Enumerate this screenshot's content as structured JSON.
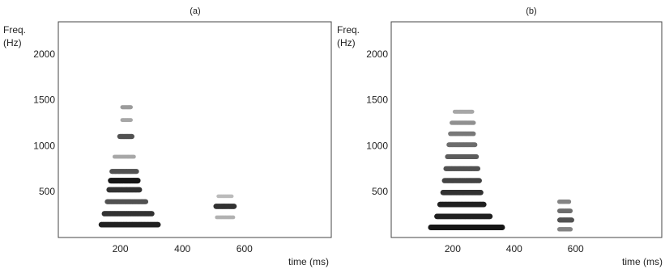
{
  "chart_data": [
    {
      "type": "heatmap",
      "panel_label": "(a)",
      "ylabel_line1": "Freq.",
      "ylabel_line2": "(Hz)",
      "xlabel": "time (ms)",
      "xticks": [
        200,
        400,
        600
      ],
      "yticks": [
        500,
        1000,
        1500,
        2000
      ],
      "xlim": [
        0,
        880
      ],
      "ylim": [
        0,
        2350
      ],
      "bands": [
        {
          "t0": 130,
          "t1": 330,
          "f": 140,
          "intensity": 0.95
        },
        {
          "t0": 140,
          "t1": 310,
          "f": 260,
          "intensity": 0.9
        },
        {
          "t0": 150,
          "t1": 290,
          "f": 390,
          "intensity": 0.8
        },
        {
          "t0": 155,
          "t1": 270,
          "f": 520,
          "intensity": 0.9
        },
        {
          "t0": 160,
          "t1": 265,
          "f": 620,
          "intensity": 1.0
        },
        {
          "t0": 165,
          "t1": 260,
          "f": 720,
          "intensity": 0.8
        },
        {
          "t0": 175,
          "t1": 250,
          "f": 880,
          "intensity": 0.45
        },
        {
          "t0": 190,
          "t1": 245,
          "f": 1100,
          "intensity": 0.8
        },
        {
          "t0": 200,
          "t1": 240,
          "f": 1280,
          "intensity": 0.45
        },
        {
          "t0": 200,
          "t1": 240,
          "f": 1420,
          "intensity": 0.5
        },
        {
          "t0": 500,
          "t1": 575,
          "f": 340,
          "intensity": 0.9
        },
        {
          "t0": 505,
          "t1": 570,
          "f": 220,
          "intensity": 0.4
        },
        {
          "t0": 510,
          "t1": 565,
          "f": 450,
          "intensity": 0.35
        }
      ]
    },
    {
      "type": "heatmap",
      "panel_label": "(b)",
      "ylabel_line1": "Freq.",
      "ylabel_line2": "(Hz)",
      "xlabel": "time (ms)",
      "xticks": [
        200,
        400,
        600
      ],
      "yticks": [
        500,
        1000,
        1500,
        2000
      ],
      "xlim": [
        0,
        880
      ],
      "ylim": [
        0,
        2350
      ],
      "bands": [
        {
          "t0": 120,
          "t1": 370,
          "f": 110,
          "intensity": 1.0
        },
        {
          "t0": 140,
          "t1": 330,
          "f": 230,
          "intensity": 0.95
        },
        {
          "t0": 150,
          "t1": 310,
          "f": 360,
          "intensity": 0.95
        },
        {
          "t0": 160,
          "t1": 300,
          "f": 490,
          "intensity": 0.9
        },
        {
          "t0": 165,
          "t1": 295,
          "f": 620,
          "intensity": 0.85
        },
        {
          "t0": 170,
          "t1": 290,
          "f": 750,
          "intensity": 0.8
        },
        {
          "t0": 175,
          "t1": 285,
          "f": 880,
          "intensity": 0.75
        },
        {
          "t0": 180,
          "t1": 280,
          "f": 1010,
          "intensity": 0.7
        },
        {
          "t0": 185,
          "t1": 275,
          "f": 1130,
          "intensity": 0.65
        },
        {
          "t0": 190,
          "t1": 275,
          "f": 1250,
          "intensity": 0.55
        },
        {
          "t0": 200,
          "t1": 270,
          "f": 1370,
          "intensity": 0.45
        },
        {
          "t0": 540,
          "t1": 590,
          "f": 90,
          "intensity": 0.6
        },
        {
          "t0": 540,
          "t1": 595,
          "f": 190,
          "intensity": 0.8
        },
        {
          "t0": 540,
          "t1": 590,
          "f": 290,
          "intensity": 0.7
        },
        {
          "t0": 540,
          "t1": 585,
          "f": 390,
          "intensity": 0.6
        }
      ]
    }
  ]
}
